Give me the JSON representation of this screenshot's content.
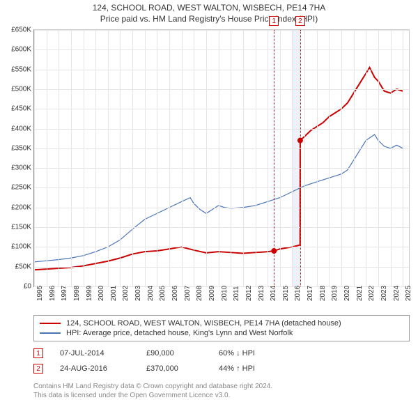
{
  "titles": {
    "line1": "124, SCHOOL ROAD, WEST WALTON, WISBECH, PE14 7HA",
    "line2": "Price paid vs. HM Land Registry's House Price Index (HPI)"
  },
  "chart": {
    "type": "line",
    "xlim": [
      1995,
      2025.5
    ],
    "ylim": [
      0,
      650000
    ],
    "ytick_step": 50000,
    "ytick_prefix": "£",
    "ytick_suffix": "K",
    "xticks": [
      1995,
      1996,
      1997,
      1998,
      1999,
      2000,
      2001,
      2002,
      2003,
      2004,
      2005,
      2006,
      2007,
      2008,
      2009,
      2010,
      2011,
      2012,
      2013,
      2014,
      2015,
      2016,
      2017,
      2018,
      2019,
      2020,
      2021,
      2022,
      2023,
      2024,
      2025
    ],
    "grid_color": "#e5e5e5",
    "background_color": "#ffffff",
    "band": {
      "from": 2016.0,
      "to": 2016.65,
      "color": "#eef2f8"
    },
    "series": [
      {
        "name": "property",
        "color": "#cc0000",
        "width": 2,
        "points": [
          [
            1995,
            42000
          ],
          [
            1996,
            44000
          ],
          [
            1997,
            46000
          ],
          [
            1998,
            48000
          ],
          [
            1999,
            52000
          ],
          [
            2000,
            58000
          ],
          [
            2001,
            64000
          ],
          [
            2002,
            72000
          ],
          [
            2003,
            82000
          ],
          [
            2004,
            88000
          ],
          [
            2005,
            90000
          ],
          [
            2006,
            95000
          ],
          [
            2007,
            100000
          ],
          [
            2008,
            92000
          ],
          [
            2009,
            85000
          ],
          [
            2010,
            88000
          ],
          [
            2011,
            86000
          ],
          [
            2012,
            84000
          ],
          [
            2013,
            86000
          ],
          [
            2014,
            88000
          ],
          [
            2014.52,
            90000
          ],
          [
            2015,
            95000
          ],
          [
            2016,
            100000
          ],
          [
            2016.64,
            105000
          ],
          [
            2016.65,
            370000
          ],
          [
            2017,
            380000
          ],
          [
            2017.5,
            395000
          ],
          [
            2018,
            405000
          ],
          [
            2018.5,
            415000
          ],
          [
            2019,
            430000
          ],
          [
            2019.5,
            440000
          ],
          [
            2020,
            450000
          ],
          [
            2020.5,
            465000
          ],
          [
            2021,
            490000
          ],
          [
            2021.5,
            515000
          ],
          [
            2022,
            540000
          ],
          [
            2022.3,
            555000
          ],
          [
            2022.7,
            530000
          ],
          [
            2023,
            520000
          ],
          [
            2023.5,
            495000
          ],
          [
            2024,
            490000
          ],
          [
            2024.5,
            500000
          ],
          [
            2025,
            495000
          ]
        ]
      },
      {
        "name": "hpi",
        "color": "#4a74b8",
        "width": 1.2,
        "points": [
          [
            1995,
            62000
          ],
          [
            1996,
            65000
          ],
          [
            1997,
            68000
          ],
          [
            1998,
            72000
          ],
          [
            1999,
            78000
          ],
          [
            2000,
            88000
          ],
          [
            2001,
            100000
          ],
          [
            2002,
            118000
          ],
          [
            2003,
            145000
          ],
          [
            2004,
            170000
          ],
          [
            2005,
            185000
          ],
          [
            2006,
            200000
          ],
          [
            2007,
            215000
          ],
          [
            2007.7,
            225000
          ],
          [
            2008,
            210000
          ],
          [
            2008.5,
            195000
          ],
          [
            2009,
            185000
          ],
          [
            2009.5,
            195000
          ],
          [
            2010,
            205000
          ],
          [
            2010.5,
            200000
          ],
          [
            2011,
            198000
          ],
          [
            2012,
            200000
          ],
          [
            2013,
            205000
          ],
          [
            2014,
            215000
          ],
          [
            2015,
            225000
          ],
          [
            2016,
            240000
          ],
          [
            2017,
            255000
          ],
          [
            2018,
            265000
          ],
          [
            2019,
            275000
          ],
          [
            2020,
            285000
          ],
          [
            2020.5,
            295000
          ],
          [
            2021,
            320000
          ],
          [
            2021.5,
            345000
          ],
          [
            2022,
            370000
          ],
          [
            2022.7,
            385000
          ],
          [
            2023,
            370000
          ],
          [
            2023.5,
            355000
          ],
          [
            2024,
            350000
          ],
          [
            2024.5,
            358000
          ],
          [
            2025,
            350000
          ]
        ]
      }
    ],
    "sale_markers": [
      {
        "n": "1",
        "x": 2014.52,
        "y": 90000,
        "color": "#cc0000"
      },
      {
        "n": "2",
        "x": 2016.65,
        "y": 370000,
        "color": "#cc0000"
      }
    ],
    "dot_color": "#cc0000",
    "dot_radius": 4
  },
  "legend": {
    "items": [
      {
        "color": "#cc0000",
        "label": "124, SCHOOL ROAD, WEST WALTON, WISBECH, PE14 7HA (detached house)"
      },
      {
        "color": "#4a74b8",
        "label": "HPI: Average price, detached house, King's Lynn and West Norfolk"
      }
    ]
  },
  "sales": [
    {
      "n": "1",
      "color": "#cc0000",
      "date": "07-JUL-2014",
      "price": "£90,000",
      "delta": "60% ↓ HPI"
    },
    {
      "n": "2",
      "color": "#cc0000",
      "date": "24-AUG-2016",
      "price": "£370,000",
      "delta": "44% ↑ HPI"
    }
  ],
  "footer": {
    "line1": "Contains HM Land Registry data © Crown copyright and database right 2024.",
    "line2": "This data is licensed under the Open Government Licence v3.0."
  }
}
